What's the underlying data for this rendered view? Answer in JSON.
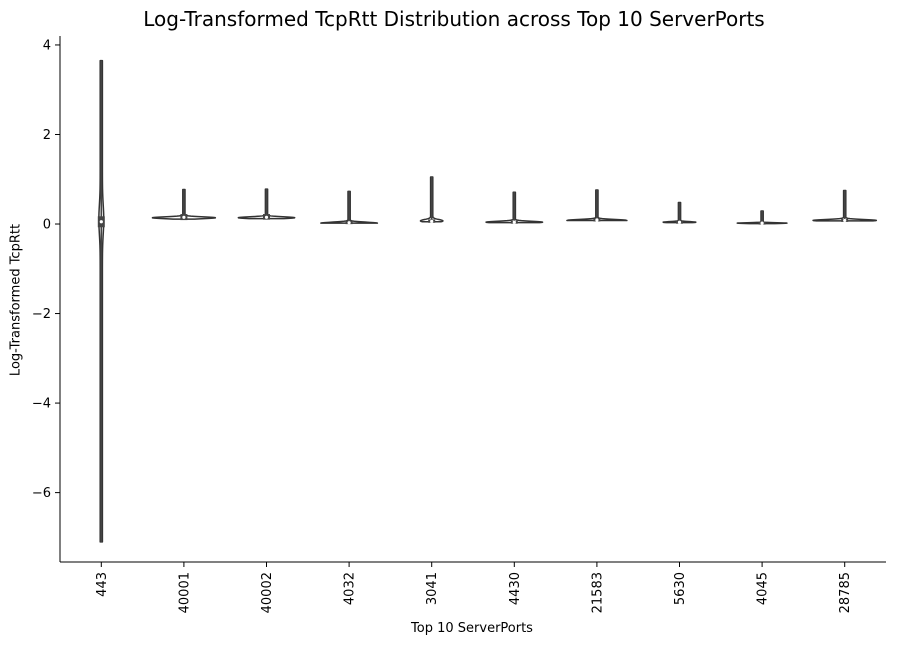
{
  "chart_data": {
    "type": "violin",
    "title": "Log-Transformed TcpRtt Distribution across Top 10 ServerPorts",
    "xlabel": "Top 10 ServerPorts",
    "ylabel": "Log-Transformed TcpRtt",
    "ylim": [
      -7.55,
      4.2
    ],
    "yticks": [
      4,
      2,
      0,
      -2,
      -4,
      -6
    ],
    "ytick_labels": [
      "4",
      "2",
      "0",
      "−2",
      "−4",
      "−6"
    ],
    "categories": [
      "443",
      "40001",
      "40002",
      "4032",
      "3041",
      "4430",
      "21583",
      "5630",
      "4045",
      "28785"
    ],
    "series": [
      {
        "max": [
          3.65,
          0.77,
          0.78,
          0.73,
          1.05,
          0.71,
          0.76,
          0.48,
          0.29,
          0.75
        ],
        "min": [
          -7.1,
          0.11,
          0.12,
          0.02,
          0.05,
          0.03,
          0.08,
          0.03,
          0.01,
          0.07
        ],
        "q1": [
          -0.05,
          0.11,
          0.12,
          0.02,
          0.05,
          0.03,
          0.08,
          0.03,
          0.01,
          0.07
        ],
        "q3": [
          0.15,
          0.2,
          0.2,
          0.05,
          0.08,
          0.05,
          0.1,
          0.05,
          0.03,
          0.09
        ],
        "median": [
          0.05,
          0.15,
          0.15,
          0.03,
          0.06,
          0.04,
          0.09,
          0.04,
          0.02,
          0.08
        ],
        "peak": [
          0.1,
          0.14,
          0.14,
          0.02,
          0.07,
          0.04,
          0.08,
          0.04,
          0.02,
          0.08
        ],
        "spread": [
          0.04,
          0.9,
          0.8,
          0.8,
          0.3,
          0.8,
          0.85,
          0.45,
          0.7,
          0.9
        ]
      }
    ],
    "colors": {
      "outline": "#333333",
      "fill": "#ffffff",
      "box": "#444444",
      "median": "#ffffff"
    },
    "legend": "none",
    "grid": false
  }
}
